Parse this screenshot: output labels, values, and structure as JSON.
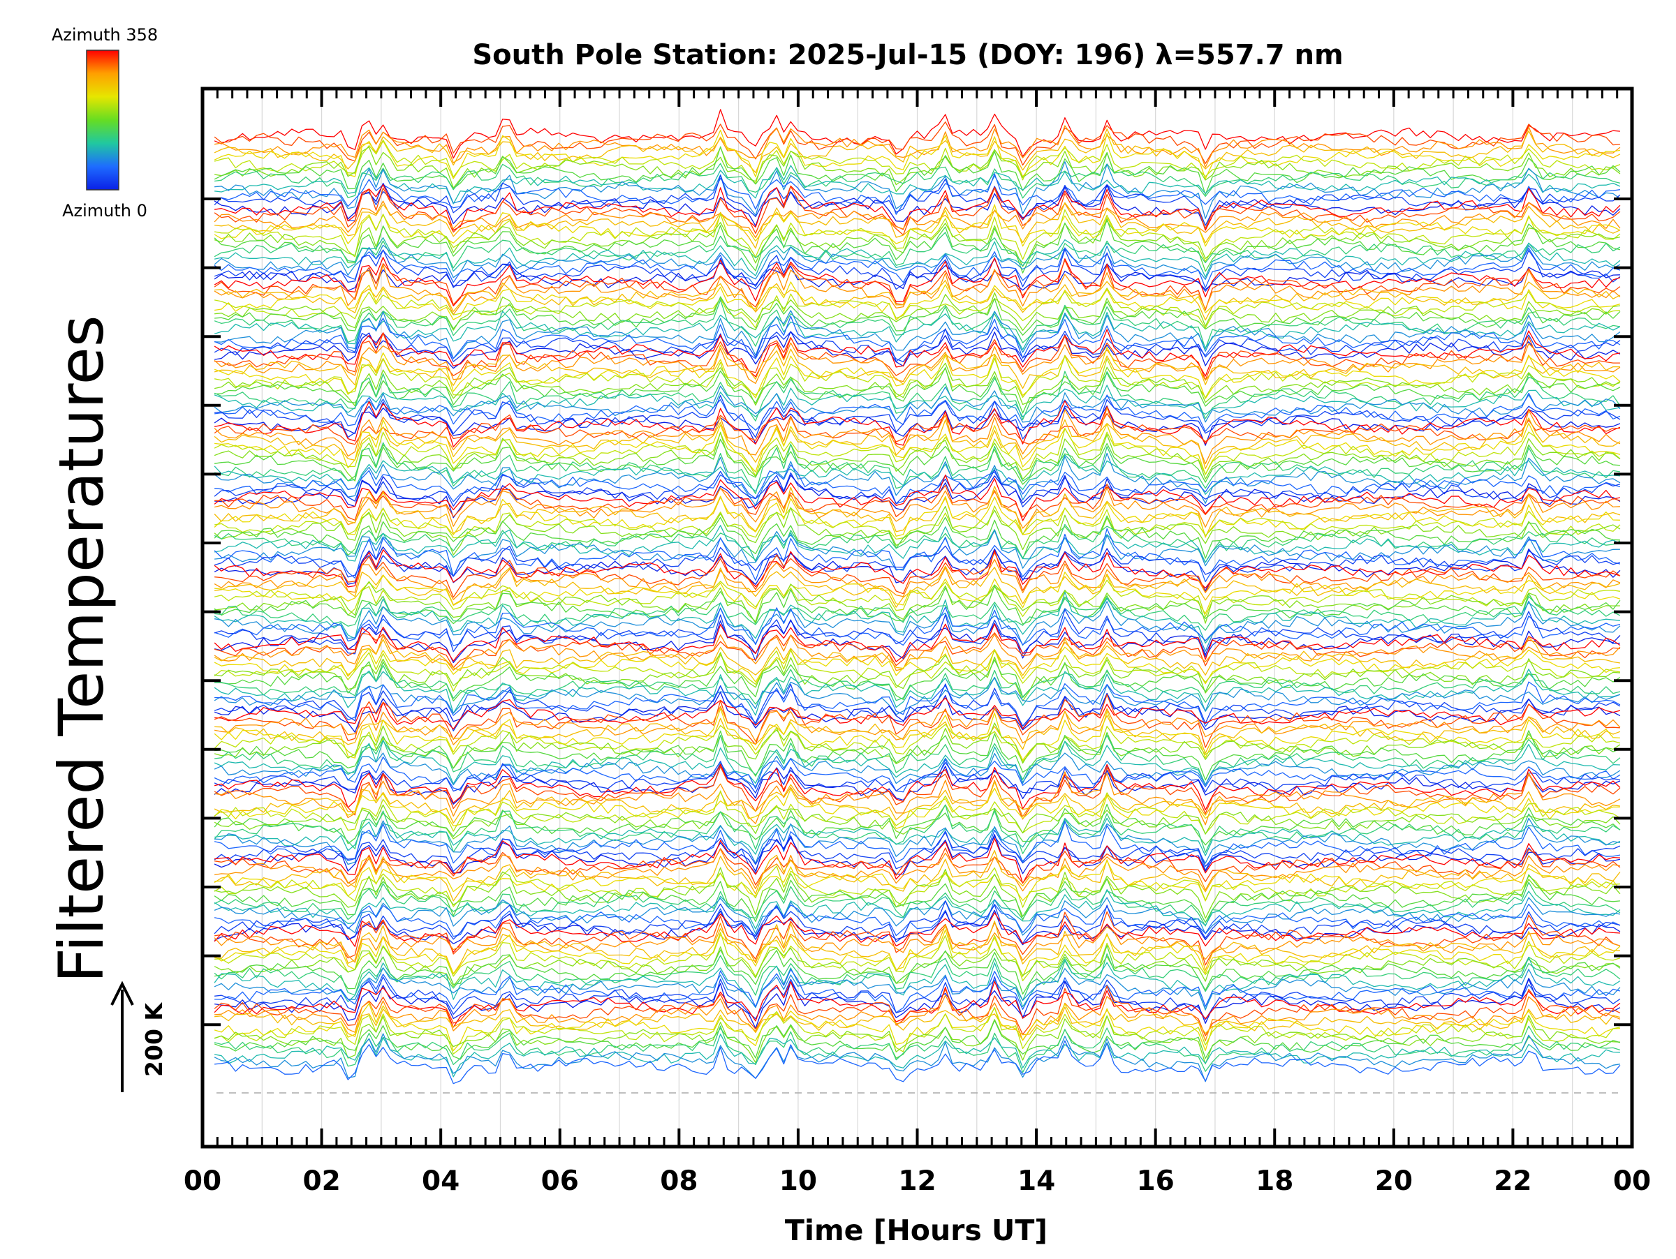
{
  "chart_data": {
    "type": "line",
    "title": "South Pole Station: 2025-Jul-15 (DOY: 196) λ=557.7 nm",
    "xlabel": "Time [Hours UT]",
    "ylabel": "Filtered Temperatures",
    "x_tick_labels": [
      "00",
      "02",
      "04",
      "06",
      "08",
      "10",
      "12",
      "14",
      "16",
      "18",
      "20",
      "22",
      "00"
    ],
    "xlim": [
      0,
      24
    ],
    "x_major_step_hours": 2,
    "x_minor_step_hours": 0.25,
    "colorbar": {
      "top_label": "Azimuth 358",
      "bottom_label": "Azimuth 0",
      "colormap": "rainbow",
      "colors": [
        "#ff0000",
        "#ffa000",
        "#e6e600",
        "#66dd22",
        "#20c8a0",
        "#1e6cff",
        "#0a20e6"
      ]
    },
    "scale_bar": {
      "label": "200 K",
      "direction": "up"
    },
    "grid": {
      "vertical_hour_lines": true,
      "baseline_dashed": true
    },
    "series_count": 180,
    "series_groups": 13,
    "series_per_group": 14,
    "series_note": "Stacked azimuth traces, each offset vertically; traces are visually dense and individual values are not labeled.",
    "event_times_hours": [
      2.5,
      2.75,
      3.05,
      4.25,
      5.1,
      8.7,
      9.25,
      9.6,
      9.9,
      11.7,
      12.45,
      13.3,
      13.8,
      14.5,
      15.2,
      16.85,
      22.3
    ]
  }
}
